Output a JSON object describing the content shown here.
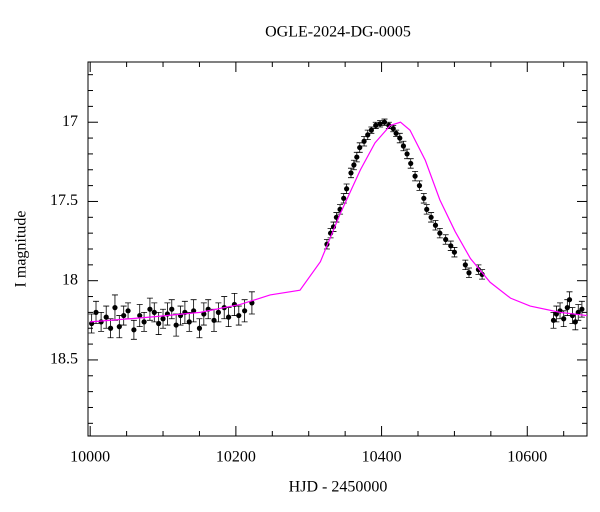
{
  "chart_data": {
    "type": "scatter",
    "title": "OGLE-2024-DG-0005",
    "xlabel": "HJD - 2450000",
    "ylabel": "I magnitude",
    "xlim": [
      9997,
      10682
    ],
    "ylim": [
      16.62,
      18.98
    ],
    "invert_y": true,
    "xticks": [
      10000,
      10200,
      10400,
      10600
    ],
    "yticks": [
      17,
      17.5,
      18,
      18.5
    ],
    "xminor": [
      10050,
      10100,
      10150,
      10250,
      10300,
      10350,
      10450,
      10500,
      10550,
      10650
    ],
    "yminor": [
      16.7,
      16.8,
      16.9,
      17.1,
      17.2,
      17.3,
      17.4,
      17.6,
      17.7,
      17.8,
      17.9,
      18.1,
      18.2,
      18.3,
      18.4,
      18.6,
      18.7,
      18.8,
      18.9
    ],
    "series": [
      {
        "color": "#000000",
        "x": [
          10002,
          10008,
          10015,
          10022,
          10028,
          10034,
          10040,
          10046,
          10052,
          10060,
          10068,
          10074,
          10082,
          10088,
          10094,
          10100,
          10106,
          10112,
          10118,
          10124,
          10130,
          10136,
          10142,
          10150,
          10156,
          10162,
          10170,
          10176,
          10184,
          10190,
          10198,
          10204,
          10212,
          10222,
          10325,
          10330,
          10334,
          10338,
          10343,
          10348,
          10352,
          10358,
          10362,
          10366,
          10370,
          10376,
          10381,
          10386,
          10392,
          10398,
          10404,
          10410,
          10416,
          10420,
          10425,
          10430,
          10435,
          10440,
          10446,
          10452,
          10458,
          10462,
          10468,
          10474,
          10480,
          10488,
          10495,
          10500,
          10515,
          10520,
          10533,
          10538,
          10636,
          10640,
          10645,
          10650,
          10655,
          10658,
          10662,
          10666,
          10670,
          10675
        ],
        "values": [
          18.27,
          18.2,
          18.26,
          18.23,
          18.3,
          18.17,
          18.29,
          18.22,
          18.19,
          18.31,
          18.22,
          18.26,
          18.18,
          18.2,
          18.27,
          18.24,
          18.21,
          18.18,
          18.28,
          18.22,
          18.2,
          18.26,
          18.19,
          18.3,
          18.21,
          18.18,
          18.25,
          18.2,
          18.17,
          18.23,
          18.15,
          18.22,
          18.19,
          18.14,
          17.77,
          17.7,
          17.66,
          17.6,
          17.55,
          17.48,
          17.42,
          17.32,
          17.27,
          17.22,
          17.16,
          17.12,
          17.08,
          17.05,
          17.02,
          17.01,
          17.0,
          17.02,
          17.04,
          17.07,
          17.1,
          17.15,
          17.2,
          17.26,
          17.34,
          17.4,
          17.48,
          17.55,
          17.6,
          17.65,
          17.7,
          17.74,
          17.78,
          17.82,
          17.9,
          17.95,
          17.93,
          17.96,
          18.25,
          18.21,
          18.19,
          18.24,
          18.17,
          18.12,
          18.22,
          18.26,
          18.2,
          18.18
        ],
        "errors": [
          0.06,
          0.07,
          0.06,
          0.07,
          0.06,
          0.08,
          0.07,
          0.06,
          0.05,
          0.06,
          0.07,
          0.06,
          0.07,
          0.06,
          0.07,
          0.06,
          0.07,
          0.06,
          0.07,
          0.06,
          0.07,
          0.06,
          0.07,
          0.06,
          0.07,
          0.06,
          0.07,
          0.06,
          0.07,
          0.06,
          0.07,
          0.06,
          0.07,
          0.07,
          0.03,
          0.03,
          0.03,
          0.03,
          0.03,
          0.03,
          0.03,
          0.03,
          0.03,
          0.03,
          0.03,
          0.03,
          0.03,
          0.02,
          0.02,
          0.02,
          0.02,
          0.02,
          0.02,
          0.02,
          0.03,
          0.03,
          0.03,
          0.03,
          0.03,
          0.03,
          0.03,
          0.03,
          0.03,
          0.03,
          0.03,
          0.03,
          0.03,
          0.03,
          0.03,
          0.03,
          0.03,
          0.03,
          0.05,
          0.05,
          0.05,
          0.05,
          0.05,
          0.05,
          0.05,
          0.05,
          0.05,
          0.05
        ]
      },
      {
        "type": "line",
        "color": "#ff00ff",
        "x": [
          10000,
          10082,
          10151,
          10206,
          10247,
          10288,
          10316,
          10343,
          10371,
          10391,
          10412,
          10426,
          10439,
          10460,
          10480,
          10501,
          10522,
          10549,
          10577,
          10604,
          10645,
          10682
        ],
        "values": [
          18.26,
          18.23,
          18.2,
          18.15,
          18.09,
          18.06,
          17.88,
          17.58,
          17.3,
          17.13,
          17.02,
          17.0,
          17.05,
          17.24,
          17.49,
          17.69,
          17.86,
          18.01,
          18.11,
          18.16,
          18.2,
          18.22
        ]
      }
    ]
  }
}
